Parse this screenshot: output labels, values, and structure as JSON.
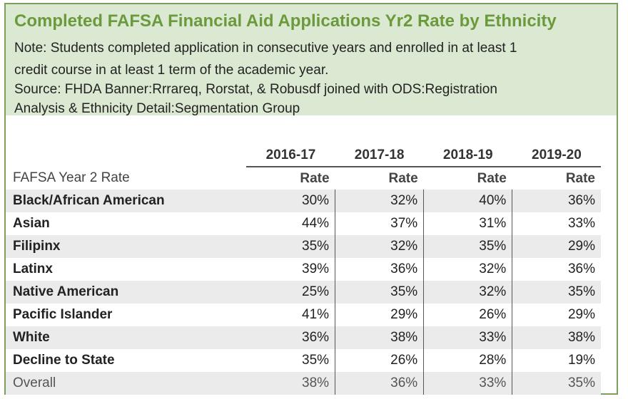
{
  "title": "Completed FAFSA Financial Aid Applications Yr2 Rate by Ethnicity",
  "note_line1": "Note: Students completed application in consecutive years and enrolled in at least 1",
  "note_line2": "credit course in at least 1 term of the academic year.",
  "source_line1": "Source: FHDA Banner:Rrrareq, Rorstat, & Robusdf joined with ODS:Registration",
  "source_line2": "Analysis & Ethnicity Detail:Segmentation Group",
  "years": [
    "2016-17",
    "2017-18",
    "2018-19",
    "2019-20"
  ],
  "row_header": "FAFSA Year 2 Rate",
  "col_subheader": "Rate",
  "rows": [
    {
      "label": "Black/African American",
      "values": [
        "30%",
        "32%",
        "40%",
        "36%"
      ]
    },
    {
      "label": "Asian",
      "values": [
        "44%",
        "37%",
        "31%",
        "33%"
      ]
    },
    {
      "label": "Filipinx",
      "values": [
        "35%",
        "32%",
        "35%",
        "29%"
      ]
    },
    {
      "label": "Latinx",
      "values": [
        "39%",
        "36%",
        "32%",
        "36%"
      ]
    },
    {
      "label": "Native American",
      "values": [
        "25%",
        "35%",
        "32%",
        "35%"
      ]
    },
    {
      "label": "Pacific Islander",
      "values": [
        "41%",
        "29%",
        "26%",
        "29%"
      ]
    },
    {
      "label": "White",
      "values": [
        "36%",
        "38%",
        "33%",
        "38%"
      ]
    },
    {
      "label": "Decline to State",
      "values": [
        "35%",
        "26%",
        "28%",
        "19%"
      ]
    }
  ],
  "overall": {
    "label": "Overall",
    "values": [
      "38%",
      "36%",
      "33%",
      "35%"
    ]
  },
  "colors": {
    "title": "#6a9a3c",
    "header_bg": "#dce9d2",
    "border": "#7aa05a",
    "shade": "#ebebeb"
  }
}
